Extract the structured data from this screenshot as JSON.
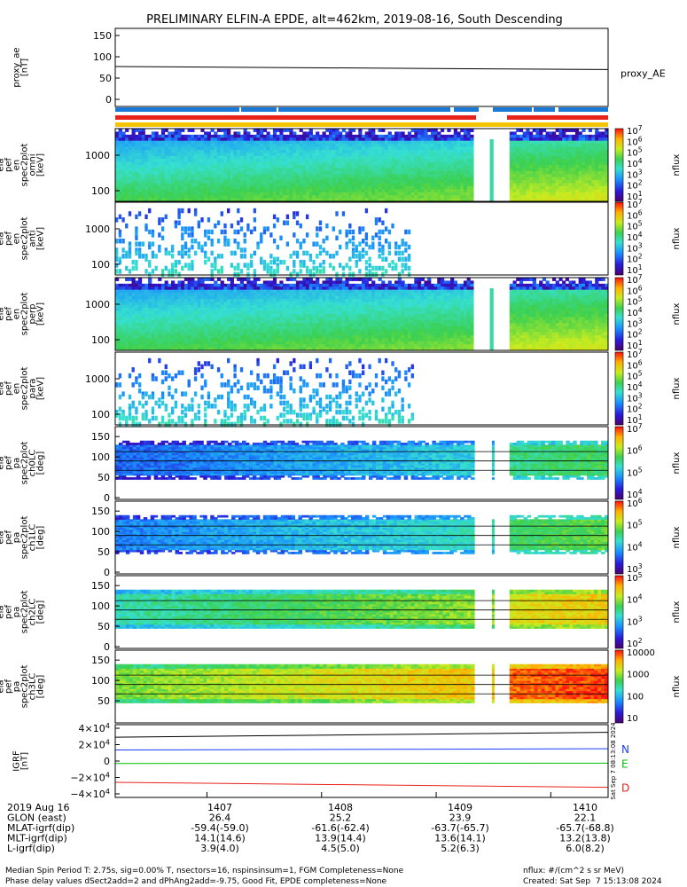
{
  "title": "PRELIMINARY ELFIN-A EPDE, alt=462km, 2019-08-16, South Descending",
  "colors": {
    "blue_bar": "#1a78d6",
    "red_bar": "#e8231b",
    "yellow_bar": "#f5c400"
  },
  "chart_data": [
    {
      "type": "line",
      "ylabel": "proxy_ae [nT]",
      "series_label": "proxy_AE",
      "yticks": [
        "150",
        "100",
        "50",
        "0"
      ],
      "ylim": [
        0,
        150
      ],
      "x": [
        1406.2,
        1410.5
      ],
      "y": [
        77,
        70
      ]
    },
    {
      "type": "heatmap",
      "ylabel": "ela pef en spec2plot omni [keV]",
      "yticks": [
        "1000",
        "100"
      ],
      "colorbar": {
        "label": "nflux",
        "ticks": [
          "10^7",
          "10^6",
          "10^5",
          "10^4",
          "10^3",
          "10^2",
          "10^1"
        ]
      }
    },
    {
      "type": "heatmap",
      "ylabel": "ela pef en spec2plot anti [keV]",
      "yticks": [
        "1000",
        "100"
      ],
      "colorbar": {
        "label": "nflux",
        "ticks": [
          "10^7",
          "10^6",
          "10^5",
          "10^4",
          "10^3",
          "10^2",
          "10^1"
        ]
      }
    },
    {
      "type": "heatmap",
      "ylabel": "ela pef en spec2plot perp [keV]",
      "yticks": [
        "1000",
        "100"
      ],
      "colorbar": {
        "label": "nflux",
        "ticks": [
          "10^7",
          "10^6",
          "10^5",
          "10^4",
          "10^3",
          "10^2",
          "10^1"
        ]
      }
    },
    {
      "type": "heatmap",
      "ylabel": "ela pef en spec2plot para [keV]",
      "yticks": [
        "1000",
        "100"
      ],
      "colorbar": {
        "label": "nflux",
        "ticks": [
          "10^7",
          "10^6",
          "10^5",
          "10^4",
          "10^3",
          "10^2",
          "10^1"
        ]
      }
    },
    {
      "type": "heatmap",
      "ylabel": "ela pef pa spec2plot ch0LC [deg]",
      "yticks": [
        "150",
        "100",
        "50",
        "0"
      ],
      "colorbar": {
        "label": "nflux",
        "ticks": [
          "10^7",
          "10^6",
          "10^5",
          "10^4"
        ]
      }
    },
    {
      "type": "heatmap",
      "ylabel": "ela pef pa spec2plot ch1LC [deg]",
      "yticks": [
        "150",
        "100",
        "50",
        "0"
      ],
      "colorbar": {
        "label": "nflux",
        "ticks": [
          "10^6",
          "10^5",
          "10^4",
          "10^3"
        ]
      }
    },
    {
      "type": "heatmap",
      "ylabel": "ela pef pa spec2plot ch2LC [deg]",
      "yticks": [
        "150",
        "100",
        "50",
        "0"
      ],
      "colorbar": {
        "label": "nflux",
        "ticks": [
          "10^5",
          "10^4",
          "10^3",
          "10^2"
        ]
      }
    },
    {
      "type": "heatmap",
      "ylabel": "ela pef pa spec2plot ch3LC [deg]",
      "yticks": [
        "150",
        "100",
        "50"
      ],
      "colorbar": {
        "label": "nflux",
        "ticks": [
          "10000",
          "1000",
          "100",
          "10"
        ]
      }
    },
    {
      "type": "line",
      "ylabel": "IGRF [nT]",
      "yticks": [
        "4×10^4",
        "2×10^4",
        "0",
        "−2×10^4",
        "−4×10^4"
      ],
      "ylim": [
        -40000,
        40000
      ],
      "series": [
        {
          "name": "N",
          "color": "#1a3cff",
          "x": [
            1406.2,
            1410.5
          ],
          "y": [
            13500,
            15000
          ]
        },
        {
          "name": "E",
          "color": "#00c000",
          "x": [
            1406.2,
            1410.5
          ],
          "y": [
            -3000,
            -2500
          ]
        },
        {
          "name": "D",
          "color": "#e8231b",
          "x": [
            1406.2,
            1410.5
          ],
          "y": [
            -26000,
            -32000
          ]
        },
        {
          "name": "",
          "color": "#000000",
          "x": [
            1406.2,
            1410.5
          ],
          "y": [
            29000,
            35000
          ]
        }
      ],
      "side_note": "Sat Sep  7 08:13:08 2024"
    }
  ],
  "xaxis": {
    "rows": [
      [
        "2019 Aug 16",
        "1407",
        "1408",
        "1409",
        "1410"
      ],
      [
        "GLON (east)",
        "26.4",
        "25.2",
        "23.9",
        "22.1"
      ],
      [
        "MLAT-igrf(dip)",
        "-59.4(-59.0)",
        "-61.6(-62.4)",
        "-63.7(-65.7)",
        "-65.7(-68.8)"
      ],
      [
        "MLT-igrf(dip)",
        "14.1(14.6)",
        "13.9(14.4)",
        "13.6(14.1)",
        "13.2(13.8)"
      ],
      [
        "L-igrf(dip)",
        "3.9(4.0)",
        "4.5(5.0)",
        "5.2(6.3)",
        "6.0(8.2)"
      ]
    ]
  },
  "footer": {
    "line1": "Median Spin Period T: 2.75s, sig=0.00% T, nsectors=16, nspinsinsum=1, FGM Completeness=None",
    "line2": "Phase delay values dSect2add=2 and dPhAng2add=-9.75, Good Fit, EPDE completeness=None",
    "units": "nflux: #/(cm^2 s sr MeV)",
    "created": "Created: Sat Sep  7 15:13:08 2024"
  }
}
